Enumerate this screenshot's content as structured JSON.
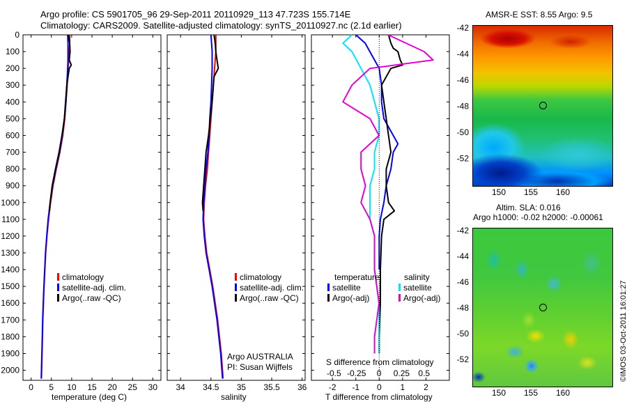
{
  "header": {
    "title_line1": "Argo profile: CS 5901705_96 29-Sep-2011 20110929_113 47.723S 155.714E",
    "title_line2": "Climatology: CARS2009. Satellite-adjusted climatology: synTS_20110927.nc (2.1d earlier)"
  },
  "depth_axis": {
    "ticks": [
      "0",
      "100",
      "200",
      "300",
      "400",
      "500",
      "600",
      "700",
      "800",
      "900",
      "1000",
      "1100",
      "1200",
      "1300",
      "1400",
      "1500",
      "1600",
      "1700",
      "1800",
      "1900",
      "2000"
    ]
  },
  "colors": {
    "climatology": "#ff0000",
    "satellite": "#0000ff",
    "argo": "#000000",
    "s_satellite": "#00e5ff",
    "s_argo": "#e600d6"
  },
  "chart_data": [
    {
      "type": "line",
      "name": "temperature-profile",
      "xlabel": "temperature (deg C)",
      "xticks": [
        "0",
        "5",
        "10",
        "15",
        "20",
        "25",
        "30"
      ],
      "xlim": [
        -2,
        32
      ],
      "ylim": [
        0,
        2060
      ],
      "legend": [
        "climatology",
        "satellite-adj. clim.",
        "Argo(..raw -QC)"
      ],
      "series": [
        {
          "name": "climatology",
          "depth": [
            0,
            50,
            100,
            150,
            200,
            300,
            400,
            500,
            600,
            700,
            800,
            900,
            1000,
            1100,
            1200,
            1300,
            1400,
            1500,
            1600,
            1700,
            1800,
            1900,
            2000,
            2050
          ],
          "values": [
            9.5,
            9.5,
            9.4,
            9.3,
            9.1,
            8.9,
            8.6,
            8.3,
            7.8,
            7.1,
            6.2,
            5.4,
            4.8,
            4.3,
            3.9,
            3.6,
            3.4,
            3.2,
            3.05,
            2.9,
            2.8,
            2.7,
            2.6,
            2.55
          ]
        },
        {
          "name": "satellite-adj. clim.",
          "depth": [
            0,
            50,
            100,
            150,
            200,
            300,
            400,
            500,
            600,
            700,
            800,
            900,
            1000,
            1100,
            1200,
            1300,
            1400,
            1500,
            1600,
            1700,
            1800,
            1900,
            2000,
            2050
          ],
          "values": [
            9.0,
            9.1,
            9.1,
            9.1,
            9.0,
            8.8,
            8.6,
            8.2,
            7.7,
            7.0,
            6.1,
            5.3,
            4.7,
            4.2,
            3.85,
            3.55,
            3.35,
            3.15,
            3.0,
            2.85,
            2.75,
            2.65,
            2.55,
            2.5
          ]
        },
        {
          "name": "Argo(..raw -QC)",
          "depth": [
            0,
            50,
            100,
            150,
            180,
            200,
            300,
            400,
            500,
            600,
            700,
            800,
            900,
            1000,
            1050
          ],
          "values": [
            9.2,
            9.5,
            9.6,
            9.4,
            9.9,
            9.4,
            8.8,
            8.5,
            8.2,
            7.6,
            6.9,
            6.0,
            5.2,
            4.7,
            4.5
          ]
        }
      ]
    },
    {
      "type": "line",
      "name": "salinity-profile",
      "xlabel": "salinity",
      "xticks": [
        "34",
        "34.5",
        "35",
        "35.5",
        "36"
      ],
      "xlim": [
        33.78,
        36.05
      ],
      "ylim": [
        0,
        2060
      ],
      "legend": [
        "climatology",
        "satellite-adj. clim.",
        "Argo(..raw -QC)"
      ],
      "annotation": [
        "Argo AUSTRALIA",
        "PI: Susan Wijffels"
      ],
      "series": [
        {
          "name": "climatology",
          "depth": [
            0,
            50,
            100,
            200,
            300,
            400,
            500,
            600,
            700,
            800,
            900,
            1000,
            1100,
            1200,
            1300,
            1400,
            1500,
            1600,
            1700,
            1800,
            1900,
            2000,
            2050
          ],
          "values": [
            34.58,
            34.58,
            34.58,
            34.56,
            34.54,
            34.52,
            34.5,
            34.48,
            34.46,
            34.44,
            34.41,
            34.39,
            34.38,
            34.4,
            34.43,
            34.48,
            34.53,
            34.57,
            34.61,
            34.64,
            34.67,
            34.69,
            34.7
          ]
        },
        {
          "name": "satellite-adj. clim.",
          "depth": [
            0,
            50,
            100,
            200,
            300,
            400,
            500,
            600,
            700,
            800,
            900,
            1000,
            1100,
            1200,
            1300,
            1400,
            1500,
            1600,
            1700,
            1800,
            1900,
            2000,
            2050
          ],
          "values": [
            34.5,
            34.51,
            34.52,
            34.52,
            34.51,
            34.5,
            34.48,
            34.47,
            34.45,
            34.42,
            34.4,
            34.38,
            34.37,
            34.39,
            34.42,
            34.47,
            34.52,
            34.56,
            34.6,
            34.63,
            34.66,
            34.68,
            34.69
          ]
        },
        {
          "name": "Argo(..raw -QC)",
          "depth": [
            0,
            50,
            100,
            150,
            200,
            250,
            300,
            400,
            500,
            600,
            700,
            800,
            900,
            1000,
            1050
          ],
          "values": [
            34.55,
            34.57,
            34.58,
            34.6,
            34.62,
            34.55,
            34.54,
            34.52,
            34.49,
            34.46,
            34.42,
            34.4,
            34.38,
            34.36,
            34.37
          ]
        }
      ]
    },
    {
      "type": "line",
      "name": "difference-profile",
      "xlabel_bottom": "T difference from climatology",
      "xlabel_top": "S difference from climatology",
      "xticks": [
        "-2",
        "-1",
        "0",
        "1",
        "2"
      ],
      "xticks_top": [
        "-0.5",
        "-0.25",
        "0",
        "0.25",
        "0.5"
      ],
      "xlim": [
        -2.9,
        3.0
      ],
      "ylim": [
        0,
        2060
      ],
      "legend_t_title": "temperature",
      "legend_s_title": "salinity",
      "legend_t": [
        "satellite",
        "Argo(-adj)"
      ],
      "legend_s": [
        "satellite",
        "Argo(-adj)"
      ],
      "series": [
        {
          "name": "T satellite",
          "depth": [
            0,
            50,
            100,
            150,
            200,
            300,
            400,
            500,
            600,
            650,
            700,
            800,
            900,
            1000,
            1100,
            1200,
            1300,
            1400
          ],
          "values": [
            -1.0,
            -0.6,
            -0.4,
            -0.2,
            0.0,
            0.1,
            0.1,
            0.2,
            0.6,
            0.8,
            0.6,
            0.5,
            0.3,
            0.2,
            0.05,
            0.0,
            0.0,
            0.0
          ]
        },
        {
          "name": "T Argo(-adj)",
          "depth": [
            0,
            50,
            80,
            100,
            150,
            180,
            200,
            300,
            400,
            500,
            600,
            700,
            800,
            900,
            1000,
            1050,
            1100,
            1200,
            1400,
            1600,
            1800,
            1900
          ],
          "values": [
            0.4,
            0.5,
            0.6,
            0.8,
            0.9,
            1.0,
            0.5,
            0.1,
            0.2,
            0.3,
            0.4,
            0.5,
            0.3,
            0.3,
            0.4,
            0.65,
            0.2,
            0.1,
            0.05,
            0.05,
            0.0,
            0.0
          ]
        },
        {
          "name": "S satellite",
          "depth": [
            0,
            50,
            100,
            200,
            300,
            400,
            500,
            600,
            700,
            800,
            900,
            1000,
            1100,
            1200,
            1400,
            1600,
            1800,
            1900
          ],
          "values": [
            -0.3,
            -0.4,
            -0.3,
            -0.2,
            -0.1,
            -0.05,
            0.0,
            0.0,
            -0.05,
            -0.05,
            -0.1,
            -0.1,
            -0.1,
            -0.05,
            -0.05,
            0.0,
            0.0,
            0.0
          ]
        },
        {
          "name": "S Argo(-adj)",
          "depth": [
            0,
            50,
            100,
            150,
            200,
            300,
            400,
            500,
            600,
            700,
            800,
            900,
            1000,
            1100,
            1200,
            1400,
            1600,
            1800,
            1900
          ],
          "values": [
            0.1,
            0.3,
            0.5,
            0.6,
            -0.1,
            -0.3,
            -0.4,
            -0.1,
            0.0,
            -0.2,
            -0.2,
            -0.15,
            -0.2,
            -0.1,
            -0.05,
            -0.05,
            0.0,
            -0.05,
            -0.05
          ]
        }
      ]
    }
  ],
  "maps": {
    "sst": {
      "title": "AMSR-E SST: 8.55 Argo: 9.5",
      "yticks": [
        "-42",
        "-44",
        "-46",
        "-48",
        "-50",
        "-52"
      ],
      "xticks": [
        "150",
        "155",
        "160"
      ]
    },
    "sla": {
      "title_line1": "Altim. SLA: 0.016",
      "title_line2": "Argo h1000: -0.02 h2000: -0.00061",
      "yticks": [
        "-42",
        "-44",
        "-46",
        "-48",
        "-50",
        "-52"
      ],
      "xticks": [
        "150",
        "155",
        "160"
      ]
    },
    "stamp": "©IMOS 03-Oct-2011 16:01:27"
  }
}
